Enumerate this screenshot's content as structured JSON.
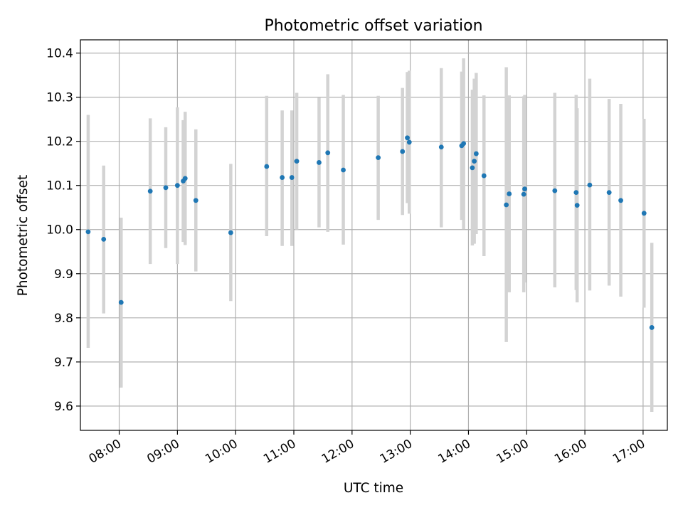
{
  "chart_data": {
    "type": "scatter",
    "title": "Photometric offset variation",
    "xlabel": "UTC time",
    "ylabel": "Photometric offset",
    "grid": true,
    "xlim": [
      "07:20",
      "17:25"
    ],
    "ylim": [
      9.545,
      10.43
    ],
    "x_ticks": [
      "08:00",
      "09:00",
      "10:00",
      "11:00",
      "12:00",
      "13:00",
      "14:00",
      "15:00",
      "16:00",
      "17:00"
    ],
    "y_ticks": [
      "9.6",
      "9.7",
      "9.8",
      "9.9",
      "10.0",
      "10.1",
      "10.2",
      "10.3",
      "10.4"
    ],
    "colors": {
      "point": "#1f77b4",
      "errorbar": "#d3d3d3",
      "grid": "#b0b0b0"
    },
    "series": [
      {
        "points": [
          {
            "time": "07:28",
            "y": 9.995,
            "low": 9.732,
            "high": 10.26
          },
          {
            "time": "07:44",
            "y": 9.978,
            "low": 9.81,
            "high": 10.145
          },
          {
            "time": "08:02",
            "y": 9.835,
            "low": 9.642,
            "high": 10.027
          },
          {
            "time": "08:32",
            "y": 10.087,
            "low": 9.922,
            "high": 10.252
          },
          {
            "time": "08:48",
            "y": 10.095,
            "low": 9.958,
            "high": 10.232
          },
          {
            "time": "09:00",
            "y": 10.1,
            "low": 9.922,
            "high": 10.277
          },
          {
            "time": "09:06",
            "y": 10.11,
            "low": 9.972,
            "high": 10.248
          },
          {
            "time": "09:08",
            "y": 10.116,
            "low": 9.965,
            "high": 10.267
          },
          {
            "time": "09:19",
            "y": 10.066,
            "low": 9.905,
            "high": 10.227
          },
          {
            "time": "09:55",
            "y": 9.993,
            "low": 9.838,
            "high": 10.149
          },
          {
            "time": "10:32",
            "y": 10.143,
            "low": 9.985,
            "high": 10.303
          },
          {
            "time": "10:48",
            "y": 10.118,
            "low": 9.963,
            "high": 10.27
          },
          {
            "time": "10:58",
            "y": 10.118,
            "low": 9.963,
            "high": 10.27
          },
          {
            "time": "11:03",
            "y": 10.155,
            "low": 10.0,
            "high": 10.31
          },
          {
            "time": "11:26",
            "y": 10.152,
            "low": 10.005,
            "high": 10.299
          },
          {
            "time": "11:35",
            "y": 10.174,
            "low": 9.995,
            "high": 10.352
          },
          {
            "time": "11:51",
            "y": 10.135,
            "low": 9.966,
            "high": 10.305
          },
          {
            "time": "12:27",
            "y": 10.163,
            "low": 10.022,
            "high": 10.303
          },
          {
            "time": "12:52",
            "y": 10.177,
            "low": 10.033,
            "high": 10.321
          },
          {
            "time": "12:57",
            "y": 10.208,
            "low": 10.06,
            "high": 10.357
          },
          {
            "time": "12:59",
            "y": 10.198,
            "low": 10.036,
            "high": 10.36
          },
          {
            "time": "13:32",
            "y": 10.187,
            "low": 10.005,
            "high": 10.366
          },
          {
            "time": "13:53",
            "y": 10.19,
            "low": 10.022,
            "high": 10.358
          },
          {
            "time": "13:55",
            "y": 10.195,
            "low": 10.001,
            "high": 10.388
          },
          {
            "time": "14:04",
            "y": 10.14,
            "low": 9.964,
            "high": 10.317
          },
          {
            "time": "14:06",
            "y": 10.155,
            "low": 9.968,
            "high": 10.342
          },
          {
            "time": "14:08",
            "y": 10.172,
            "low": 9.99,
            "high": 10.355
          },
          {
            "time": "14:16",
            "y": 10.122,
            "low": 9.94,
            "high": 10.304
          },
          {
            "time": "14:39",
            "y": 10.056,
            "low": 9.745,
            "high": 10.368
          },
          {
            "time": "14:42",
            "y": 10.081,
            "low": 9.858,
            "high": 10.304
          },
          {
            "time": "14:57",
            "y": 10.08,
            "low": 9.858,
            "high": 10.302
          },
          {
            "time": "14:58",
            "y": 10.092,
            "low": 9.88,
            "high": 10.305
          },
          {
            "time": "15:29",
            "y": 10.088,
            "low": 9.869,
            "high": 10.31
          },
          {
            "time": "15:51",
            "y": 10.084,
            "low": 9.863,
            "high": 10.305
          },
          {
            "time": "15:52",
            "y": 10.055,
            "low": 9.835,
            "high": 10.275
          },
          {
            "time": "16:05",
            "y": 10.101,
            "low": 9.862,
            "high": 10.342
          },
          {
            "time": "16:25",
            "y": 10.084,
            "low": 9.873,
            "high": 10.296
          },
          {
            "time": "16:37",
            "y": 10.066,
            "low": 9.848,
            "high": 10.285
          },
          {
            "time": "17:01",
            "y": 10.037,
            "low": 9.823,
            "high": 10.251
          },
          {
            "time": "17:09",
            "y": 9.778,
            "low": 9.587,
            "high": 9.97
          }
        ]
      }
    ]
  }
}
